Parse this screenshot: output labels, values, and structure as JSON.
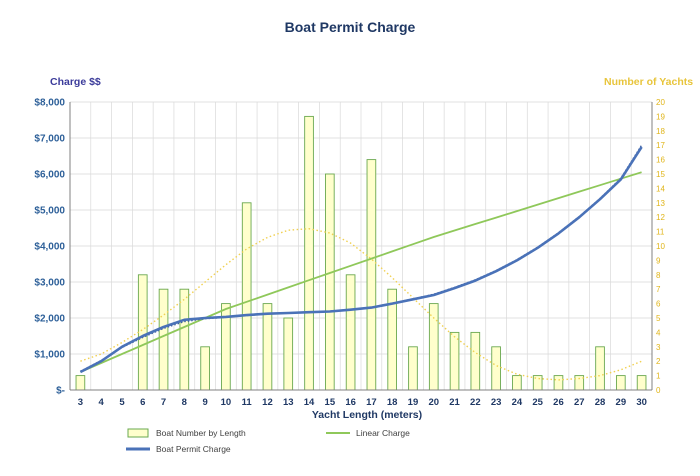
{
  "chart_data": {
    "type": "bar",
    "title": "Boat Permit Charge",
    "xlabel": "Yacht Length (meters)",
    "ylabel": "Charge $$",
    "y2label": "Number of Yachts",
    "ylim": [
      0,
      8000
    ],
    "y2lim": [
      0,
      20
    ],
    "y_ticks": [
      "$-",
      "$1,000",
      "$2,000",
      "$3,000",
      "$4,000",
      "$5,000",
      "$6,000",
      "$7,000",
      "$8,000"
    ],
    "y2_ticks": [
      "0",
      "1",
      "2",
      "3",
      "4",
      "5",
      "6",
      "7",
      "8",
      "9",
      "10",
      "11",
      "12",
      "13",
      "14",
      "15",
      "16",
      "17",
      "18",
      "19",
      "20"
    ],
    "categories": [
      "3",
      "4",
      "5",
      "6",
      "7",
      "8",
      "9",
      "10",
      "11",
      "12",
      "13",
      "14",
      "15",
      "16",
      "17",
      "18",
      "19",
      "20",
      "21",
      "22",
      "23",
      "24",
      "25",
      "26",
      "27",
      "28",
      "29",
      "30"
    ],
    "grid": true,
    "legend_position": "bottom",
    "series": [
      {
        "name": "Boat Number by Length",
        "type": "bar",
        "axis": "right",
        "color": "#ffffcc",
        "edge_color": "#6aa84f",
        "values": [
          1,
          0,
          0,
          8,
          7,
          7,
          3,
          6,
          13,
          6,
          5,
          19,
          15,
          8,
          16,
          7,
          3,
          6,
          4,
          4,
          3,
          1,
          1,
          1,
          1,
          3,
          1,
          1
        ]
      },
      {
        "name": "Linear Charge",
        "type": "line",
        "axis": "left",
        "color": "#8fc85a",
        "values": [
          500,
          750,
          1000,
          1250,
          1500,
          1750,
          2000,
          2250,
          2450,
          2650,
          2850,
          3050,
          3250,
          3450,
          3650,
          3850,
          4050,
          4250,
          4430,
          4610,
          4790,
          4970,
          5150,
          5330,
          5510,
          5690,
          5870,
          6050
        ]
      },
      {
        "name": "Boat Permit Charge",
        "type": "line",
        "axis": "left",
        "color": "#4a72b8",
        "values": [
          500,
          800,
          1200,
          1500,
          1750,
          1950,
          2000,
          2030,
          2080,
          2120,
          2140,
          2160,
          2180,
          2230,
          2290,
          2400,
          2520,
          2640,
          2830,
          3040,
          3300,
          3600,
          3950,
          4350,
          4800,
          5300,
          5850,
          6750
        ]
      },
      {
        "type": "trend",
        "axis": "left",
        "color": "#3a5a9a",
        "values": [
          520,
          820,
          1180,
          1460,
          1710,
          1900,
          1980,
          2020,
          2070,
          2110,
          2140,
          2160,
          2190,
          2240,
          2300,
          2410,
          2530,
          2660,
          2850,
          3060,
          3320,
          3620,
          3970,
          4370,
          4820,
          5320,
          5880,
          6800
        ]
      },
      {
        "type": "trend",
        "axis": "right",
        "color": "#f0d050",
        "values": [
          2,
          2.5,
          3.3,
          4.2,
          5.2,
          6.3,
          7.5,
          8.7,
          9.8,
          10.6,
          11.1,
          11.2,
          10.9,
          10.2,
          9.1,
          7.8,
          6.4,
          5.0,
          3.7,
          2.6,
          1.7,
          1.1,
          0.8,
          0.7,
          0.8,
          1.0,
          1.4,
          2.0
        ]
      }
    ]
  }
}
